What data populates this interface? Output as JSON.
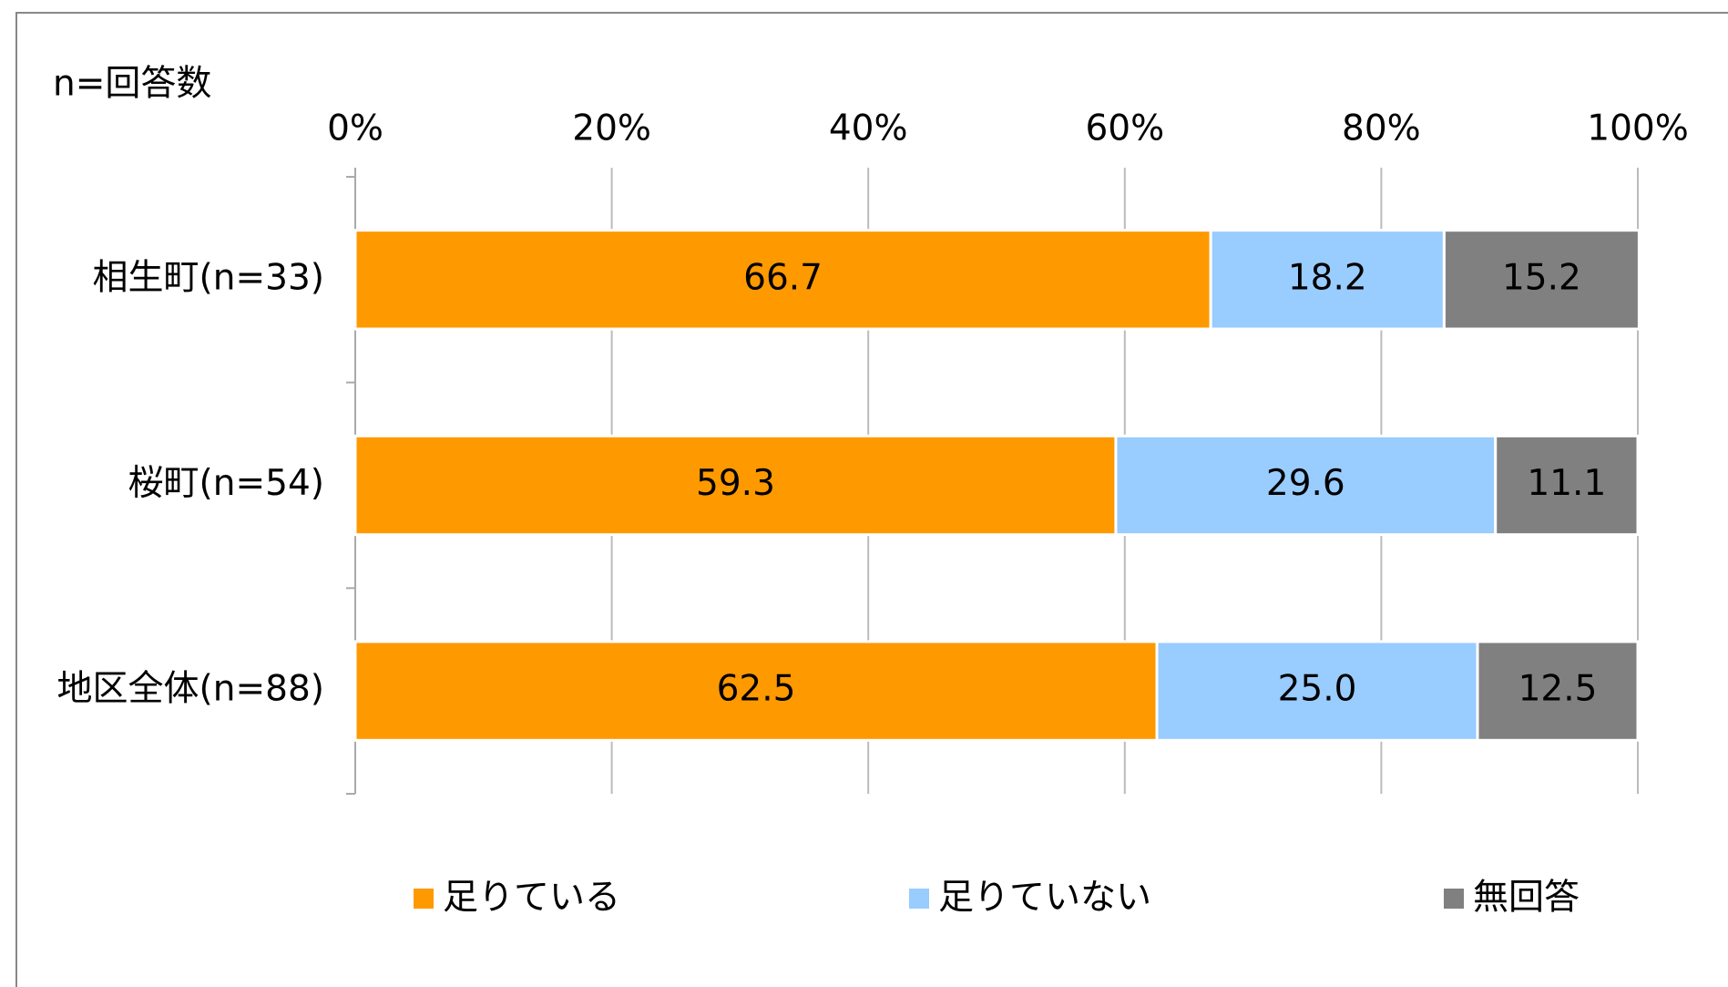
{
  "chart_data": {
    "type": "stacked-bar-horizontal",
    "annotation": "n=回答数",
    "categories": [
      "相生町(n=33)",
      "桜町(n=54)",
      "地区全体(n=88)"
    ],
    "series": [
      {
        "name": "足りている",
        "color": "#ff9900",
        "values": [
          66.7,
          59.3,
          62.5
        ],
        "value_labels": [
          "66.7",
          "59.3",
          "62.5"
        ]
      },
      {
        "name": "足りていない",
        "color": "#99ccff",
        "values": [
          18.2,
          29.6,
          25.0
        ],
        "value_labels": [
          "18.2",
          "29.6",
          "25.0"
        ]
      },
      {
        "name": "無回答",
        "color": "#808080",
        "values": [
          15.2,
          11.1,
          12.5
        ],
        "value_labels": [
          "15.2",
          "11.1",
          "12.5"
        ]
      }
    ],
    "xlim": [
      0,
      100
    ],
    "xticks": [
      {
        "value": 0,
        "label": "0%"
      },
      {
        "value": 20,
        "label": "20%"
      },
      {
        "value": 40,
        "label": "40%"
      },
      {
        "value": 60,
        "label": "60%"
      },
      {
        "value": 80,
        "label": "80%"
      },
      {
        "value": 100,
        "label": "100%"
      }
    ],
    "grid": true,
    "legend": "bottom"
  }
}
